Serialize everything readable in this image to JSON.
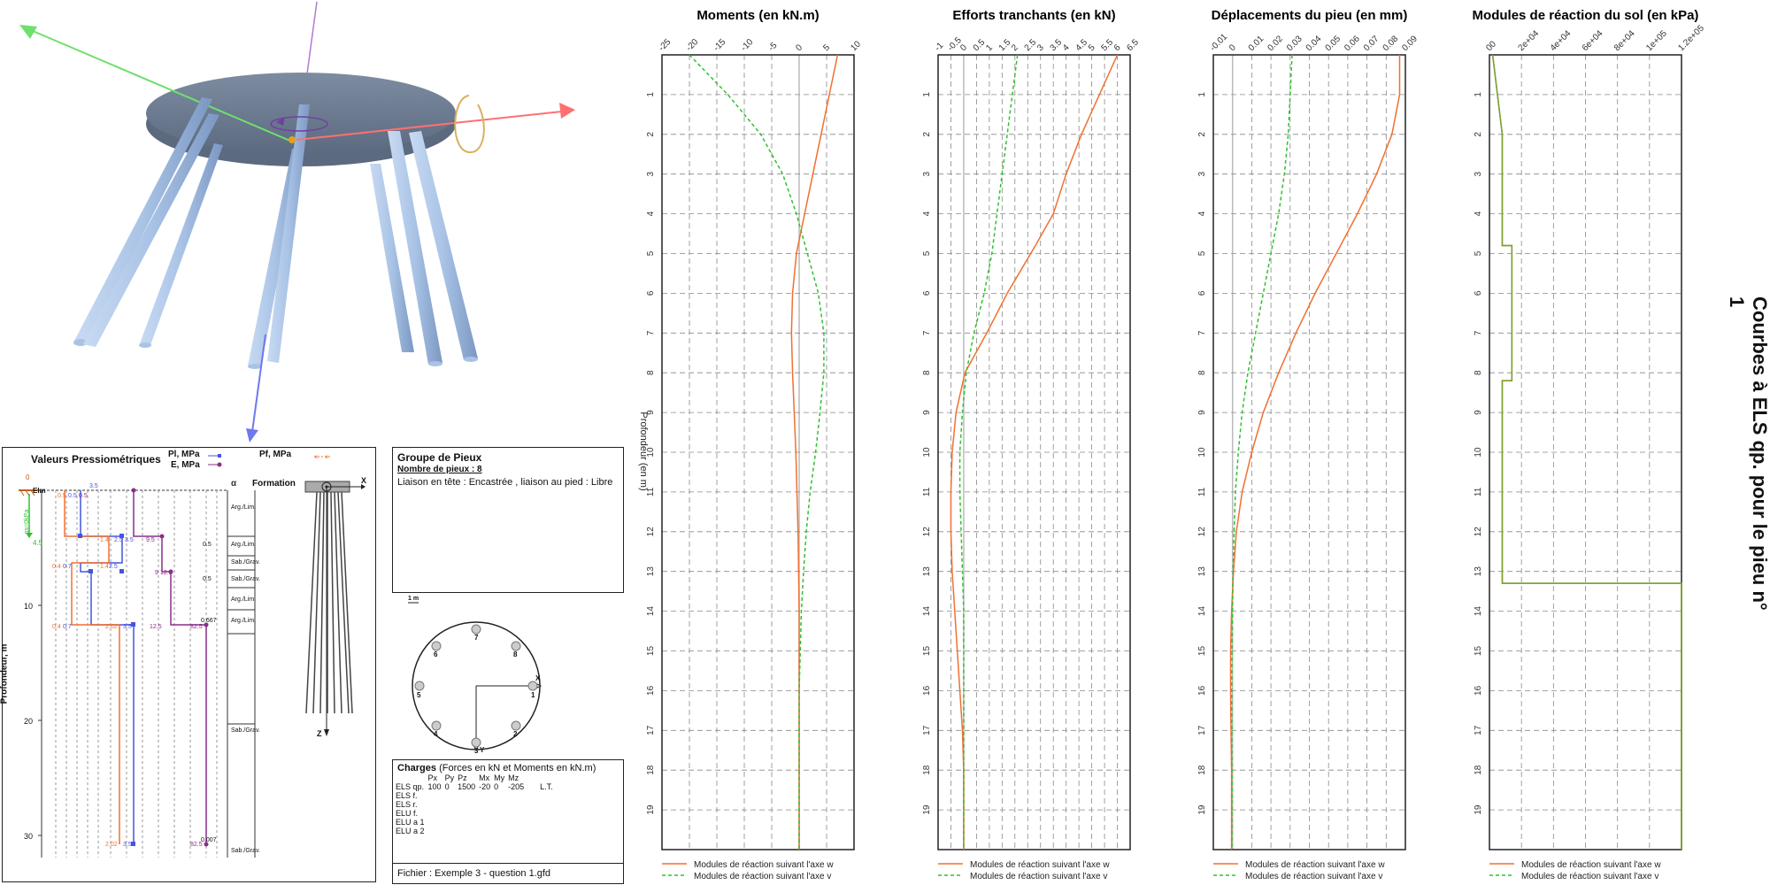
{
  "side_title": "Courbes à ELS qp. pour le pieu n° 1",
  "geo_panel": {
    "title": "Valeurs Pressiométriques",
    "legend_pl": "Pl, MPa",
    "legend_e": "E, MPa",
    "legend_pf": "Pf, MPa",
    "formation_header": "Formation",
    "ylabel": "Profondeur, m",
    "y_ticks": [
      "10",
      "20",
      "30"
    ],
    "elm_label": "Elm",
    "qs_label": "qs=0kPa",
    "top_labels": [
      "0",
      "0"
    ],
    "green_value": "4.5",
    "formations": [
      "Arg./Lim.",
      "Arg./Lim.",
      "Sab./Grav.",
      "Sab./Grav.",
      "Arg./Lim.",
      "Arg./Lim.",
      "Sab./Grav.",
      "Sab./Grav."
    ],
    "alpha_values": [
      "0.5",
      "0.5",
      "0.667",
      "0.007"
    ],
    "alpha_symbol": "α",
    "value_labels": [
      "0.5",
      "0.5",
      "0.5",
      "1.4",
      "2.5",
      "3.5",
      "9.5",
      "9",
      "12.5",
      "0.4",
      "0.7",
      "1.4",
      "2.5",
      "0.4",
      "0.7",
      "2.02",
      "3.5",
      "12.5",
      "82.5",
      "2.02",
      "3.5",
      "82.5",
      "3.5"
    ],
    "axis_x": "X",
    "axis_z": "Z"
  },
  "group_panel": {
    "title": "Groupe de Pieux",
    "count_label": "Nombre de pieux : 8",
    "liaison": "Liaison en tête : Encastrée , liaison au pied : Libre",
    "scale_label": "1 m",
    "pile_numbers": [
      "1",
      "2",
      "3",
      "4",
      "5",
      "6",
      "7",
      "8"
    ],
    "axis_x": "X",
    "axis_y": "Y"
  },
  "charges_panel": {
    "title": "Charges",
    "subtitle": "(Forces en kN et Moments en kN.m)",
    "columns": [
      "Px",
      "Py",
      "Pz",
      "Mx",
      "My",
      "Mz"
    ],
    "rows": [
      {
        "label": "ELS qp.",
        "values": [
          "100",
          "0",
          "1500",
          "-20",
          "0",
          "-205"
        ],
        "extra": "L.T."
      },
      {
        "label": "ELS f.",
        "values": [
          "",
          "",
          "",
          "",
          "",
          ""
        ],
        "extra": ""
      },
      {
        "label": "ELS r.",
        "values": [
          "",
          "",
          "",
          "",
          "",
          ""
        ],
        "extra": ""
      },
      {
        "label": "ELU f.",
        "values": [
          "",
          "",
          "",
          "",
          "",
          ""
        ],
        "extra": ""
      },
      {
        "label": "ELU a 1",
        "values": [
          "",
          "",
          "",
          "",
          "",
          ""
        ],
        "extra": ""
      },
      {
        "label": "ELU a 2",
        "values": [
          "",
          "",
          "",
          "",
          "",
          ""
        ],
        "extra": ""
      }
    ]
  },
  "file_label": "Fichier : Exemple 3 - question 1.gfd",
  "colors": {
    "w": "#f07030",
    "v": "#30c030",
    "modulus": "#7ea030",
    "grid": "#888888"
  },
  "chart_data": [
    {
      "type": "line",
      "title": "Moments (en kN.m)",
      "ylabel": "Profondeur (en m)",
      "xlim": [
        -25,
        10
      ],
      "x_ticks": [
        "-25",
        "-20",
        "-15",
        "-10",
        "-5",
        "0",
        "5",
        "10"
      ],
      "ylim": [
        0,
        20
      ],
      "y_ticks": [
        "1",
        "2",
        "3",
        "4",
        "5",
        "6",
        "7",
        "8",
        "9",
        "10",
        "11",
        "12",
        "13",
        "14",
        "15",
        "16",
        "17",
        "18",
        "19"
      ],
      "legend": [
        "Modules de réaction suivant l'axe w",
        "Modules de réaction suivant l'axe v"
      ],
      "series": [
        {
          "name": "Modules de réaction suivant l'axe w",
          "x": [
            7,
            5.5,
            4,
            2.5,
            1,
            -0.5,
            -1.2,
            -1.4,
            -1.2,
            -0.9,
            -0.6,
            -0.4,
            -0.2,
            -0.1,
            0,
            0,
            0,
            0,
            0,
            0
          ],
          "y": [
            0,
            1,
            2,
            3,
            4,
            5,
            6,
            7,
            8,
            9,
            10,
            11,
            12,
            13,
            14,
            15,
            16,
            17,
            18,
            20
          ]
        },
        {
          "name": "Modules de réaction suivant l'axe v",
          "x": [
            -20,
            -13,
            -7,
            -3,
            -0.5,
            1.5,
            3.5,
            4.5,
            4.5,
            3.8,
            3,
            2,
            1.3,
            0.8,
            0.4,
            0.2,
            0,
            0,
            0,
            0
          ],
          "y": [
            0,
            1,
            2,
            3,
            4,
            5,
            6,
            7,
            8,
            9,
            10,
            11,
            12,
            13,
            14,
            15,
            16,
            17,
            18,
            20
          ]
        }
      ]
    },
    {
      "type": "line",
      "title": "Efforts tranchants (en kN)",
      "xlim": [
        -1,
        6.5
      ],
      "x_ticks": [
        "-1",
        "-0.5",
        "0",
        "0.5",
        "1",
        "1.5",
        "2",
        "2.5",
        "3",
        "3.5",
        "4",
        "4.5",
        "5",
        "5.5",
        "6",
        "6.5"
      ],
      "ylim": [
        0,
        20
      ],
      "y_ticks": [
        "1",
        "2",
        "3",
        "4",
        "5",
        "6",
        "7",
        "8",
        "9",
        "10",
        "11",
        "12",
        "13",
        "14",
        "15",
        "16",
        "17",
        "18",
        "19"
      ],
      "legend": [
        "Modules de réaction suivant l'axe w",
        "Modules de réaction suivant l'axe v"
      ],
      "series": [
        {
          "name": "Modules de réaction suivant l'axe w",
          "x": [
            6,
            5.3,
            4.6,
            4,
            3.5,
            2.8,
            1.7,
            0.9,
            0.05,
            -0.3,
            -0.45,
            -0.5,
            -0.5,
            -0.45,
            -0.35,
            -0.25,
            -0.15,
            -0.05,
            0,
            0
          ],
          "y": [
            0,
            1,
            2,
            3,
            4,
            4.8,
            6,
            7,
            8,
            9,
            10,
            11,
            12,
            13,
            14,
            15,
            16,
            17,
            18,
            20
          ]
        },
        {
          "name": "Modules de réaction suivant l'axe v",
          "x": [
            2.1,
            1.9,
            1.7,
            1.5,
            1.3,
            1.1,
            0.8,
            0.4,
            0.1,
            -0.05,
            -0.15,
            -0.15,
            -0.1,
            -0.05,
            0,
            0,
            0,
            0,
            0,
            0
          ],
          "y": [
            0,
            1,
            2,
            3,
            4,
            5,
            6,
            7,
            8,
            9,
            10,
            11,
            12,
            13,
            14,
            15,
            16,
            17,
            18,
            20
          ]
        }
      ]
    },
    {
      "type": "line",
      "title": "Déplacements du pieu (en mm)",
      "xlim": [
        -0.01,
        0.09
      ],
      "x_ticks": [
        "-0.01",
        "0",
        "0.01",
        "0.02",
        "0.03",
        "0.04",
        "0.05",
        "0.06",
        "0.07",
        "0.08",
        "0.09"
      ],
      "ylim": [
        0,
        20
      ],
      "y_ticks": [
        "1",
        "2",
        "3",
        "4",
        "5",
        "6",
        "7",
        "8",
        "9",
        "10",
        "11",
        "12",
        "13",
        "14",
        "15",
        "16",
        "17",
        "18",
        "19"
      ],
      "legend": [
        "Modules de réaction suivant l'axe w",
        "Modules de réaction suivant l'axe v"
      ],
      "series": [
        {
          "name": "Modules de réaction suivant l'axe w",
          "x": [
            0.087,
            0.087,
            0.083,
            0.075,
            0.065,
            0.054,
            0.043,
            0.033,
            0.024,
            0.016,
            0.01,
            0.005,
            0.002,
            0.0005,
            -0.0005,
            -0.001,
            -0.001,
            -0.0008,
            -0.0005,
            -0.0005
          ],
          "y": [
            0,
            1,
            2,
            3,
            4,
            5,
            6,
            7,
            8,
            9,
            10,
            11,
            12,
            13,
            14,
            15,
            16,
            17,
            18,
            20
          ]
        },
        {
          "name": "Modules de réaction suivant l'axe v",
          "x": [
            0.031,
            0.03,
            0.029,
            0.027,
            0.024,
            0.02,
            0.016,
            0.012,
            0.008,
            0.005,
            0.003,
            0.0015,
            0.0008,
            0.0003,
            0,
            -0.0003,
            -0.0004,
            -0.0004,
            -0.0003,
            -0.0003
          ],
          "y": [
            0,
            1,
            2,
            3,
            4,
            5,
            6,
            7,
            8,
            9,
            10,
            11,
            12,
            13,
            14,
            15,
            16,
            17,
            18,
            20
          ]
        }
      ]
    },
    {
      "type": "line",
      "title": "Modules de réaction du sol (en kPa)",
      "xlim": [
        0,
        120000
      ],
      "x_ticks": [
        "00",
        "2e+04",
        "4e+04",
        "6e+04",
        "8e+04",
        "1e+05",
        "1.2e+05"
      ],
      "ylim": [
        0,
        20
      ],
      "y_ticks": [
        "1",
        "2",
        "3",
        "4",
        "5",
        "6",
        "7",
        "8",
        "9",
        "10",
        "11",
        "12",
        "13",
        "14",
        "15",
        "16",
        "17",
        "18",
        "19"
      ],
      "legend": [
        "Modules de réaction suivant l'axe w",
        "Modules de réaction suivant l'axe v"
      ],
      "series": [
        {
          "name": "Modules de réaction suivant l'axe w",
          "x": [
            2000,
            8000,
            8000,
            14000,
            14000,
            8000,
            8000,
            8000,
            8000,
            8000,
            8000,
            120000,
            120000
          ],
          "y": [
            0,
            2,
            4.8,
            4.8,
            8.2,
            8.2,
            8.3,
            8.3,
            13.2,
            13.2,
            13.3,
            13.3,
            20
          ]
        },
        {
          "name": "Modules de réaction suivant l'axe v",
          "x": [
            2000,
            8000,
            8000,
            14000,
            14000,
            8000,
            8000,
            8000,
            8000,
            8000,
            8000,
            120000,
            120000
          ],
          "y": [
            0,
            2,
            4.8,
            4.8,
            8.2,
            8.2,
            8.3,
            8.3,
            13.2,
            13.2,
            13.3,
            13.3,
            20
          ]
        }
      ]
    }
  ]
}
